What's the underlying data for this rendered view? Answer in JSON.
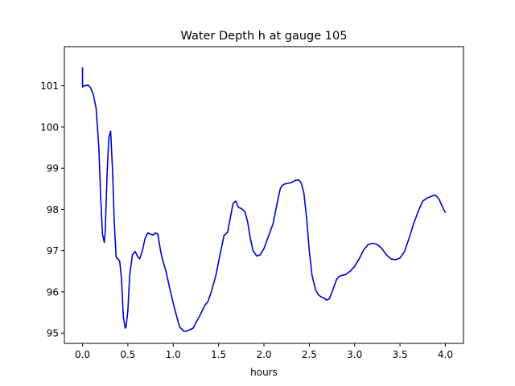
{
  "chart_data": {
    "type": "line",
    "title": "Water Depth h at gauge 105",
    "xlabel": "hours",
    "ylabel": "",
    "xlim": [
      -0.2,
      4.2
    ],
    "ylim": [
      94.75,
      101.95
    ],
    "grid": false,
    "legend": "none",
    "x_ticks": [
      0.0,
      0.5,
      1.0,
      1.5,
      2.0,
      2.5,
      3.0,
      3.5,
      4.0
    ],
    "x_tick_labels": [
      "0.0",
      "0.5",
      "1.0",
      "1.5",
      "2.0",
      "2.5",
      "3.0",
      "3.5",
      "4.0"
    ],
    "y_ticks": [
      95,
      96,
      97,
      98,
      99,
      100,
      101
    ],
    "y_tick_labels": [
      "95",
      "96",
      "97",
      "98",
      "99",
      "100",
      "101"
    ],
    "series": [
      {
        "color": "#0000cc",
        "x": [
          0.0,
          0.0,
          0.01,
          0.03,
          0.06,
          0.09,
          0.12,
          0.15,
          0.18,
          0.2,
          0.22,
          0.24,
          0.25,
          0.27,
          0.29,
          0.31,
          0.33,
          0.35,
          0.37,
          0.39,
          0.41,
          0.43,
          0.45,
          0.47,
          0.48,
          0.5,
          0.52,
          0.55,
          0.58,
          0.61,
          0.63,
          0.66,
          0.69,
          0.72,
          0.75,
          0.78,
          0.8,
          0.83,
          0.86,
          0.88,
          0.92,
          0.97,
          1.02,
          1.07,
          1.12,
          1.15,
          1.18,
          1.22,
          1.25,
          1.3,
          1.35,
          1.38,
          1.42,
          1.47,
          1.52,
          1.56,
          1.6,
          1.63,
          1.66,
          1.69,
          1.72,
          1.75,
          1.79,
          1.82,
          1.85,
          1.88,
          1.92,
          1.96,
          2.0,
          2.05,
          2.1,
          2.15,
          2.18,
          2.2,
          2.23,
          2.26,
          2.3,
          2.34,
          2.38,
          2.41,
          2.44,
          2.47,
          2.5,
          2.53,
          2.57,
          2.6,
          2.63,
          2.66,
          2.69,
          2.72,
          2.76,
          2.8,
          2.83,
          2.86,
          2.9,
          2.95,
          3.0,
          3.05,
          3.1,
          3.15,
          3.2,
          3.25,
          3.3,
          3.35,
          3.4,
          3.45,
          3.5,
          3.55,
          3.6,
          3.65,
          3.7,
          3.75,
          3.8,
          3.85,
          3.88,
          3.9,
          3.93,
          3.96,
          4.0
        ],
        "y": [
          101.45,
          100.97,
          101.0,
          101.0,
          101.02,
          100.95,
          100.78,
          100.45,
          99.5,
          98.3,
          97.4,
          97.2,
          97.45,
          98.8,
          99.75,
          99.9,
          99.0,
          97.7,
          96.85,
          96.8,
          96.75,
          96.3,
          95.4,
          95.12,
          95.15,
          95.55,
          96.4,
          96.9,
          96.98,
          96.85,
          96.8,
          97.0,
          97.3,
          97.43,
          97.4,
          97.38,
          97.43,
          97.4,
          97.0,
          96.8,
          96.5,
          96.0,
          95.55,
          95.15,
          95.04,
          95.05,
          95.08,
          95.12,
          95.25,
          95.45,
          95.68,
          95.75,
          96.0,
          96.4,
          96.95,
          97.37,
          97.45,
          97.8,
          98.15,
          98.2,
          98.05,
          98.02,
          97.95,
          97.7,
          97.3,
          97.0,
          96.87,
          96.9,
          97.05,
          97.35,
          97.65,
          98.2,
          98.5,
          98.58,
          98.62,
          98.63,
          98.65,
          98.7,
          98.72,
          98.65,
          98.4,
          97.8,
          97.0,
          96.4,
          96.05,
          95.93,
          95.88,
          95.85,
          95.8,
          95.83,
          96.05,
          96.3,
          96.38,
          96.4,
          96.42,
          96.5,
          96.62,
          96.8,
          97.02,
          97.15,
          97.18,
          97.15,
          97.05,
          96.9,
          96.8,
          96.78,
          96.82,
          96.98,
          97.3,
          97.65,
          97.95,
          98.2,
          98.28,
          98.32,
          98.35,
          98.33,
          98.25,
          98.1,
          97.92
        ]
      }
    ]
  }
}
